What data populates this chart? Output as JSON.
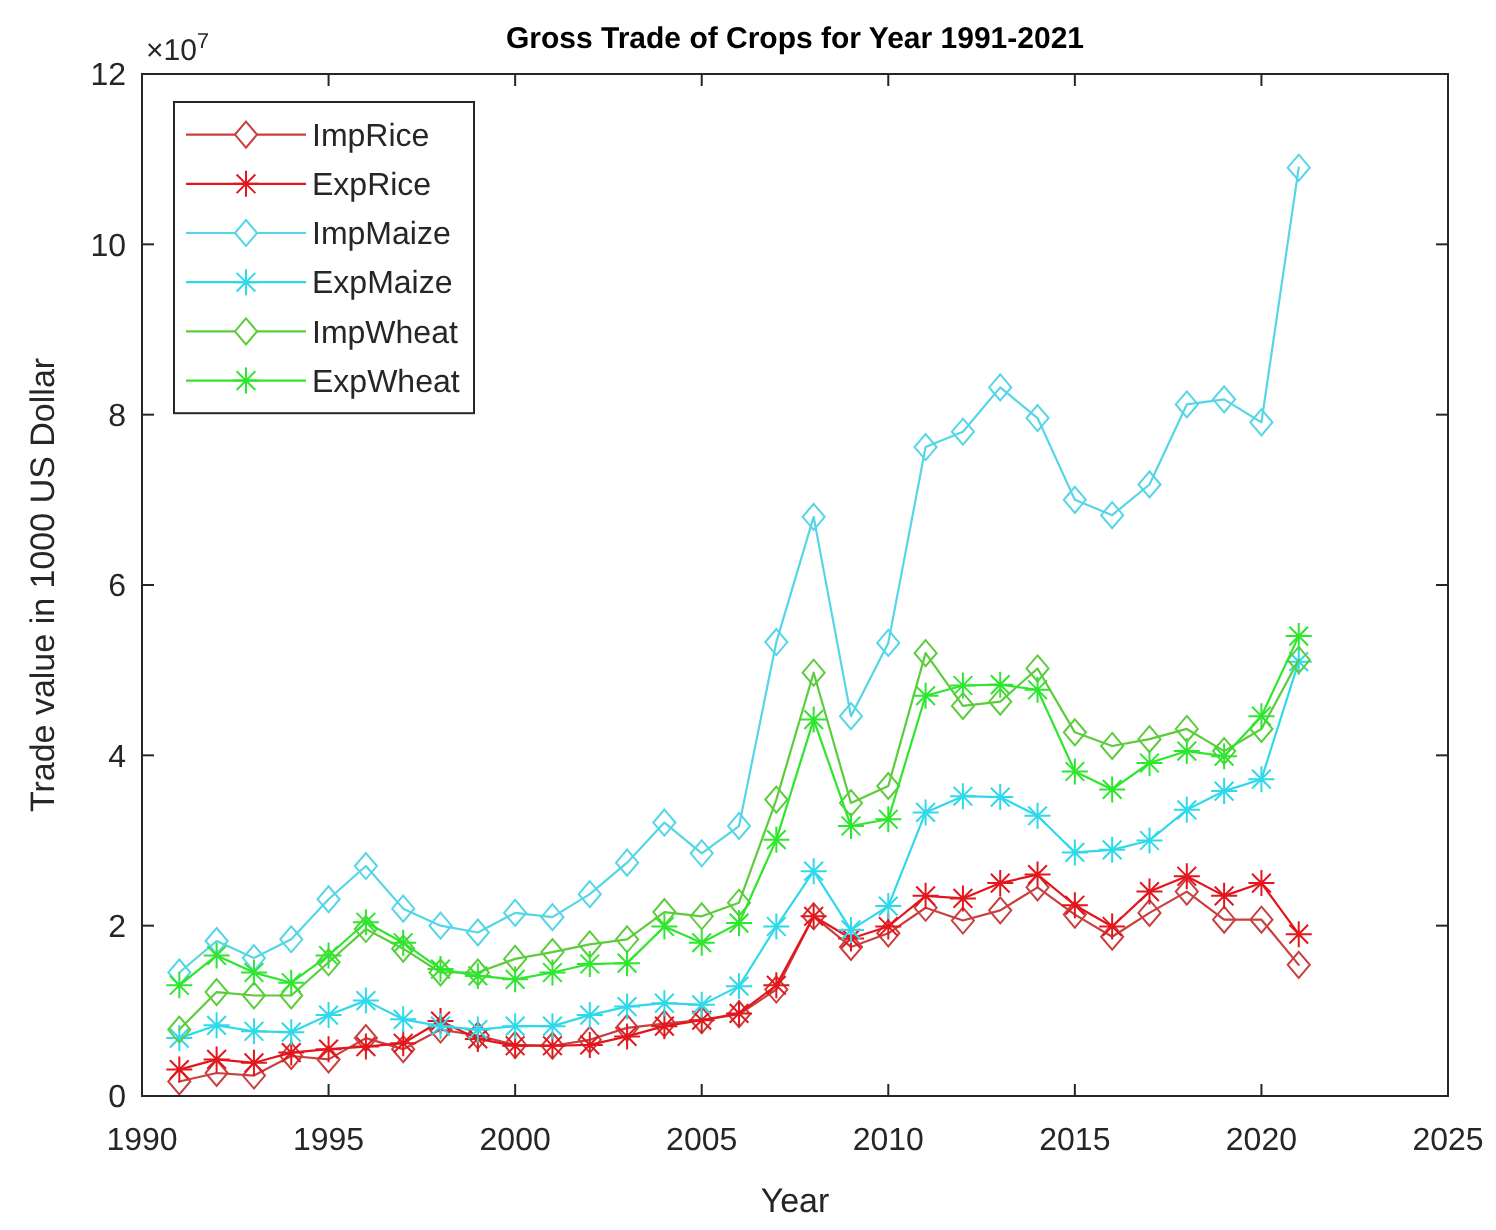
{
  "chart_data": {
    "type": "line",
    "title": "Gross Trade of Crops for Year 1991-2021",
    "xlabel": "Year",
    "ylabel": "Trade value in 1000 US Dollar",
    "annotations": [
      "×10$^{7}$"
    ],
    "x": [
      1991,
      1992,
      1993,
      1994,
      1995,
      1996,
      1997,
      1998,
      1999,
      2000,
      2001,
      2002,
      2003,
      2004,
      2005,
      2006,
      2007,
      2008,
      2009,
      2010,
      2011,
      2012,
      2013,
      2014,
      2015,
      2016,
      2017,
      2018,
      2019,
      2020,
      2021
    ],
    "xlim": [
      1990,
      2025
    ],
    "xticks": [
      1990,
      1995,
      2000,
      2005,
      2010,
      2015,
      2020,
      2025
    ],
    "ylim": [
      0,
      12
    ],
    "yticks": [
      0,
      2,
      4,
      6,
      8,
      10,
      12
    ],
    "legend": "top left",
    "line_style": "solid",
    "series": [
      {
        "name": "ImpRice",
        "color": "#c8403f",
        "marker": "diamond",
        "values": [
          0.17,
          0.27,
          0.24,
          0.47,
          0.43,
          0.68,
          0.55,
          0.78,
          0.71,
          0.6,
          0.59,
          0.66,
          0.8,
          0.85,
          0.89,
          0.96,
          1.25,
          2.11,
          1.75,
          1.91,
          2.21,
          2.06,
          2.18,
          2.45,
          2.13,
          1.87,
          2.15,
          2.4,
          2.07,
          2.07,
          1.54
        ]
      },
      {
        "name": "ExpRice",
        "color": "#e3161c",
        "marker": "cross",
        "values": [
          0.31,
          0.43,
          0.39,
          0.51,
          0.55,
          0.58,
          0.62,
          0.88,
          0.67,
          0.59,
          0.59,
          0.6,
          0.7,
          0.82,
          0.89,
          0.97,
          1.3,
          2.11,
          1.85,
          1.99,
          2.35,
          2.32,
          2.5,
          2.6,
          2.24,
          1.99,
          2.4,
          2.58,
          2.35,
          2.5,
          1.9
        ]
      },
      {
        "name": "ImpMaize",
        "color": "#55d6e6",
        "marker": "diamond",
        "values": [
          1.45,
          1.82,
          1.62,
          1.84,
          2.31,
          2.7,
          2.2,
          2.0,
          1.92,
          2.15,
          2.1,
          2.37,
          2.74,
          3.21,
          2.85,
          3.17,
          5.33,
          6.8,
          4.46,
          5.32,
          7.62,
          7.8,
          8.32,
          7.96,
          7.0,
          6.82,
          7.18,
          8.12,
          8.18,
          7.91,
          10.9
        ]
      },
      {
        "name": "ExpMaize",
        "color": "#2fd9ea",
        "marker": "cross",
        "values": [
          0.68,
          0.83,
          0.76,
          0.75,
          0.95,
          1.12,
          0.9,
          0.82,
          0.78,
          0.82,
          0.82,
          0.95,
          1.05,
          1.09,
          1.07,
          1.29,
          1.99,
          2.64,
          1.95,
          2.23,
          3.33,
          3.52,
          3.51,
          3.29,
          2.86,
          2.89,
          3.0,
          3.36,
          3.58,
          3.72,
          5.1
        ]
      },
      {
        "name": "ImpWheat",
        "color": "#5ccc3c",
        "marker": "diamond",
        "values": [
          0.78,
          1.22,
          1.18,
          1.18,
          1.57,
          1.96,
          1.73,
          1.45,
          1.45,
          1.61,
          1.69,
          1.78,
          1.84,
          2.16,
          2.11,
          2.27,
          3.48,
          4.97,
          3.44,
          3.64,
          5.2,
          4.58,
          4.63,
          5.02,
          4.27,
          4.11,
          4.19,
          4.31,
          4.05,
          4.31,
          5.12
        ]
      },
      {
        "name": "ExpWheat",
        "color": "#2ee62e",
        "marker": "cross",
        "values": [
          1.3,
          1.65,
          1.45,
          1.33,
          1.65,
          2.04,
          1.8,
          1.49,
          1.41,
          1.37,
          1.45,
          1.55,
          1.56,
          1.99,
          1.8,
          2.03,
          3.01,
          4.42,
          3.17,
          3.25,
          4.7,
          4.82,
          4.83,
          4.77,
          3.81,
          3.6,
          3.91,
          4.05,
          3.99,
          4.46,
          5.4
        ]
      }
    ]
  }
}
